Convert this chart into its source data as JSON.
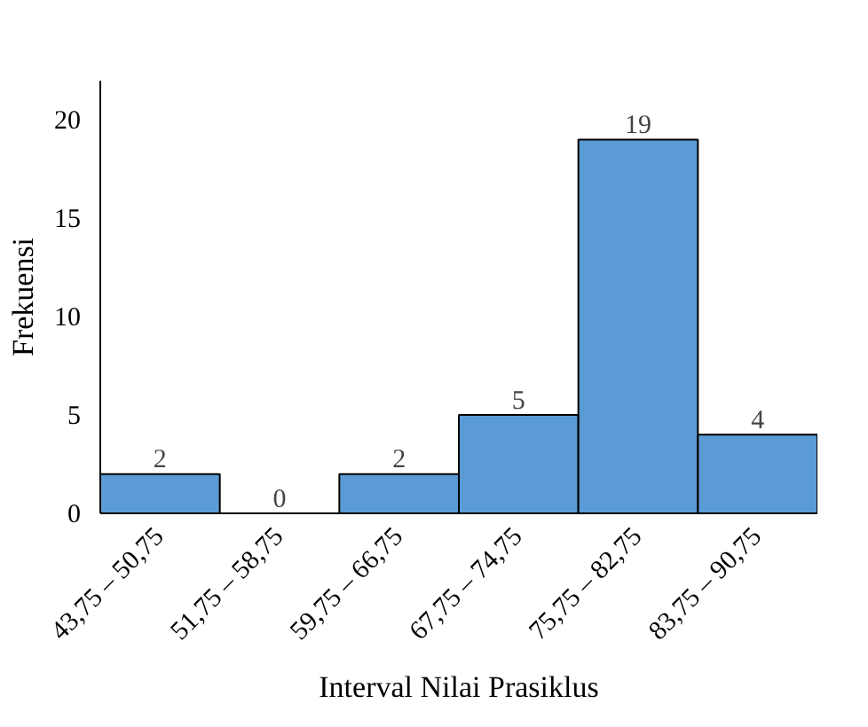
{
  "chart_data": {
    "type": "bar",
    "xlabel": "Interval Nilai Prasiklus",
    "ylabel": "Frekuensi",
    "categories": [
      "43,75 – 50,75",
      "51,75 – 58,75",
      "59,75 – 66,75",
      "67,75 – 74,75",
      "75,75 – 82,75",
      "83,75 – 90,75"
    ],
    "values": [
      2,
      0,
      2,
      5,
      19,
      4
    ],
    "color": "#5b9bd5",
    "ylim": [
      0,
      22
    ],
    "yticks": [
      0,
      5,
      10,
      15,
      20
    ],
    "grid": false,
    "data_labels": true
  }
}
